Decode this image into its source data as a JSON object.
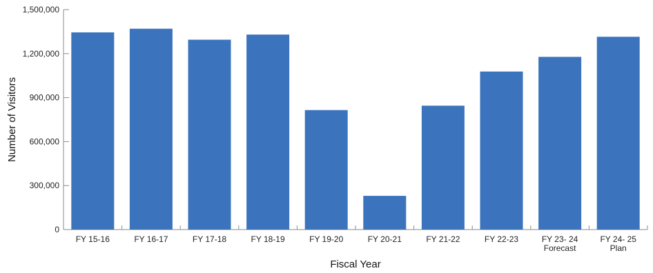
{
  "colors": {
    "bar": "#3b74bd",
    "axis": "#8a8a8a"
  },
  "chart_data": {
    "type": "bar",
    "categories": [
      [
        "FY 15-16"
      ],
      [
        "FY 16-17"
      ],
      [
        "FY 17-18"
      ],
      [
        "FY 18-19"
      ],
      [
        "FY 19-20"
      ],
      [
        "FY 20-21"
      ],
      [
        "FY 21-22"
      ],
      [
        "FY 22-23"
      ],
      [
        "FY 23- 24",
        "Forecast"
      ],
      [
        "FY 24- 25",
        "Plan"
      ]
    ],
    "values": [
      1345000,
      1370000,
      1295000,
      1330000,
      815000,
      230000,
      845000,
      1078000,
      1178000,
      1315000
    ],
    "title": "",
    "xlabel": "Fiscal Year",
    "ylabel": "Number of Visitors",
    "ylim": [
      0,
      1500000
    ],
    "yticks": [
      0,
      300000,
      600000,
      900000,
      1200000,
      1500000
    ],
    "ytick_labels": [
      "0",
      "300,000",
      "600,000",
      "900,000",
      "1,200,000",
      "1,500,000"
    ],
    "grid": false,
    "legend": "none"
  }
}
